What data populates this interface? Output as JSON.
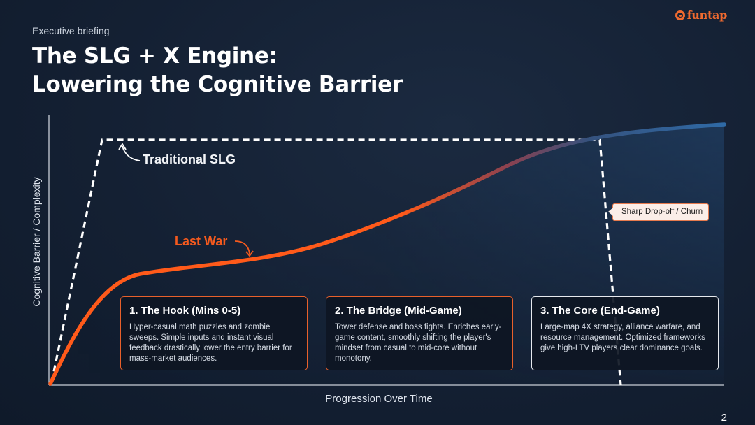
{
  "header": {
    "eyebrow": "Executive briefing",
    "title_line1": "The SLG + X Engine:",
    "title_line2": "Lowering the Cognitive Barrier"
  },
  "logo": {
    "text": "funtap",
    "icon": "funtap-logo-icon"
  },
  "colors": {
    "accent": "#f45a1e",
    "background": "#142033",
    "card_border_orange": "#e8602b",
    "card_border_white": "#e6e9ee"
  },
  "chart_data": {
    "type": "line",
    "title": "",
    "xlabel": "Progression Over Time",
    "ylabel": "Cognitive Barrier / Complexity",
    "series": [
      {
        "name": "Traditional SLG",
        "style": "dashed",
        "color": "#ffffff"
      },
      {
        "name": "Last War",
        "style": "solid",
        "color": "#f45a1e"
      }
    ],
    "annotations": [
      {
        "text": "Sharp Drop-off / Churn",
        "type": "callout"
      }
    ],
    "grid": false
  },
  "stages": [
    {
      "title": "1. The Hook (Mins 0-5)",
      "body": "Hyper-casual math puzzles and zombie sweeps. Simple inputs and instant visual feedback drastically lower the entry barrier for mass-market audiences."
    },
    {
      "title": "2. The Bridge (Mid-Game)",
      "body": "Tower defense and boss fights. Enriches early-game content, smoothly shifting the player's mindset from casual to mid-core without monotony."
    },
    {
      "title": "3. The Core (End-Game)",
      "body": "Large-map 4X strategy, alliance warfare, and resource management. Optimized frameworks give high-LTV players clear dominance goals."
    }
  ],
  "page_number": "2"
}
